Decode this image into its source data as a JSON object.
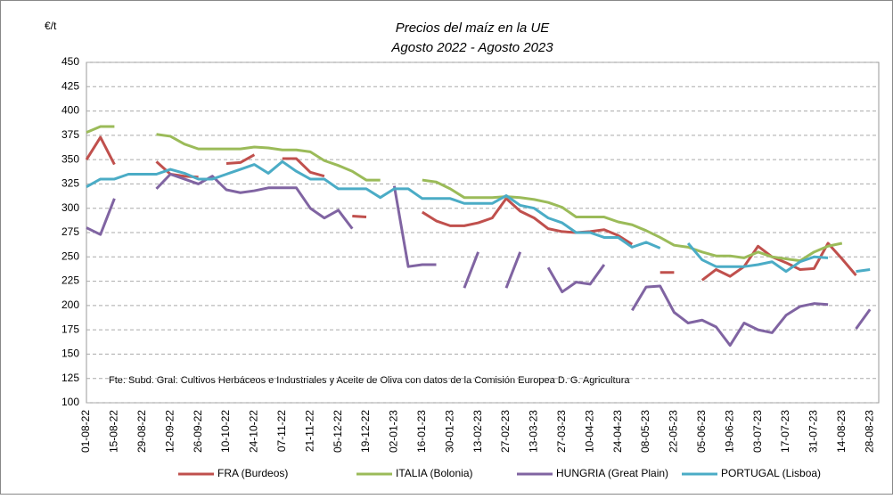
{
  "chart_data": {
    "type": "line",
    "title": "Precios del maíz en la UE",
    "subtitle": "Agosto 2022 - Agosto 2023",
    "y_label": "€/t",
    "annotation": "Fte: Subd. Gral. Cultivos Herbáceos e Industriales y Aceite de Oliva con datos de la Comisión Europea D. G. Agricultura",
    "categories": [
      "01-08-22",
      null,
      "15-08-22",
      null,
      "29-08-22",
      null,
      "12-09-22",
      null,
      "26-09-22",
      null,
      "10-10-22",
      null,
      "24-10-22",
      null,
      "07-11-22",
      null,
      "21-11-22",
      null,
      "05-12-22",
      null,
      "19-12-22",
      null,
      "02-01-23",
      null,
      "16-01-23",
      null,
      "30-01-23",
      null,
      "13-02-23",
      null,
      "27-02-23",
      null,
      "13-03-23",
      null,
      "27-03-23",
      null,
      "10-04-23",
      null,
      "24-04-23",
      null,
      "08-05-23",
      null,
      "22-05-23",
      null,
      "05-06-23",
      null,
      "19-06-23",
      null,
      "03-07-23",
      null,
      "17-07-23",
      null,
      "31-07-23",
      null,
      "14-08-23",
      null,
      "28-08-23"
    ],
    "series": [
      {
        "name": "FRA (Burdeos)",
        "color": "#c0504d",
        "values": [
          350,
          373,
          345,
          null,
          null,
          348,
          335,
          333,
          332,
          null,
          346,
          347,
          355,
          null,
          351,
          351,
          337,
          333,
          null,
          292,
          291,
          null,
          null,
          null,
          296,
          287,
          282,
          282,
          285,
          290,
          310,
          297,
          290,
          279,
          276,
          275,
          276,
          278,
          272,
          263,
          null,
          234,
          234,
          null,
          226,
          237,
          230,
          240,
          261,
          250,
          244,
          237,
          238,
          264,
          248,
          231,
          null
        ]
      },
      {
        "name": "ITALIA (Bolonia)",
        "color": "#9bbb59",
        "values": [
          378,
          384,
          384,
          null,
          null,
          376,
          374,
          366,
          361,
          361,
          361,
          361,
          363,
          362,
          360,
          360,
          358,
          349,
          344,
          338,
          329,
          329,
          null,
          null,
          329,
          327,
          320,
          311,
          311,
          311,
          312,
          311,
          309,
          306,
          301,
          291,
          291,
          291,
          286,
          283,
          277,
          270,
          262,
          260,
          255,
          251,
          251,
          249,
          255,
          250,
          248,
          246,
          255,
          261,
          264,
          null,
          null
        ]
      },
      {
        "name": "HUNGRIA (Great Plain)",
        "color": "#8064a2",
        "values": [
          280,
          273,
          310,
          null,
          null,
          320,
          335,
          330,
          325,
          333,
          319,
          316,
          318,
          321,
          321,
          321,
          300,
          290,
          298,
          279,
          null,
          null,
          323,
          240,
          242,
          242,
          null,
          218,
          255,
          null,
          218,
          255,
          null,
          239,
          214,
          224,
          222,
          242,
          null,
          195,
          219,
          220,
          193,
          182,
          185,
          178,
          159,
          182,
          175,
          172,
          190,
          199,
          202,
          201,
          null,
          176,
          196
        ]
      },
      {
        "name": "PORTUGAL (Lisboa)",
        "color": "#4bacc6",
        "values": [
          322,
          330,
          330,
          335,
          335,
          335,
          340,
          336,
          330,
          330,
          335,
          340,
          345,
          336,
          348,
          338,
          330,
          330,
          320,
          320,
          320,
          311,
          320,
          320,
          310,
          310,
          310,
          305,
          305,
          305,
          313,
          303,
          300,
          290,
          285,
          275,
          275,
          270,
          270,
          260,
          265,
          259,
          null,
          264,
          247,
          240,
          240,
          240,
          242,
          245,
          235,
          245,
          250,
          249,
          null,
          235,
          237
        ]
      }
    ],
    "ylim": [
      100,
      450
    ],
    "yticks": [
      100,
      125,
      150,
      175,
      200,
      225,
      250,
      275,
      300,
      325,
      350,
      375,
      400,
      425,
      450
    ],
    "grid": true
  }
}
